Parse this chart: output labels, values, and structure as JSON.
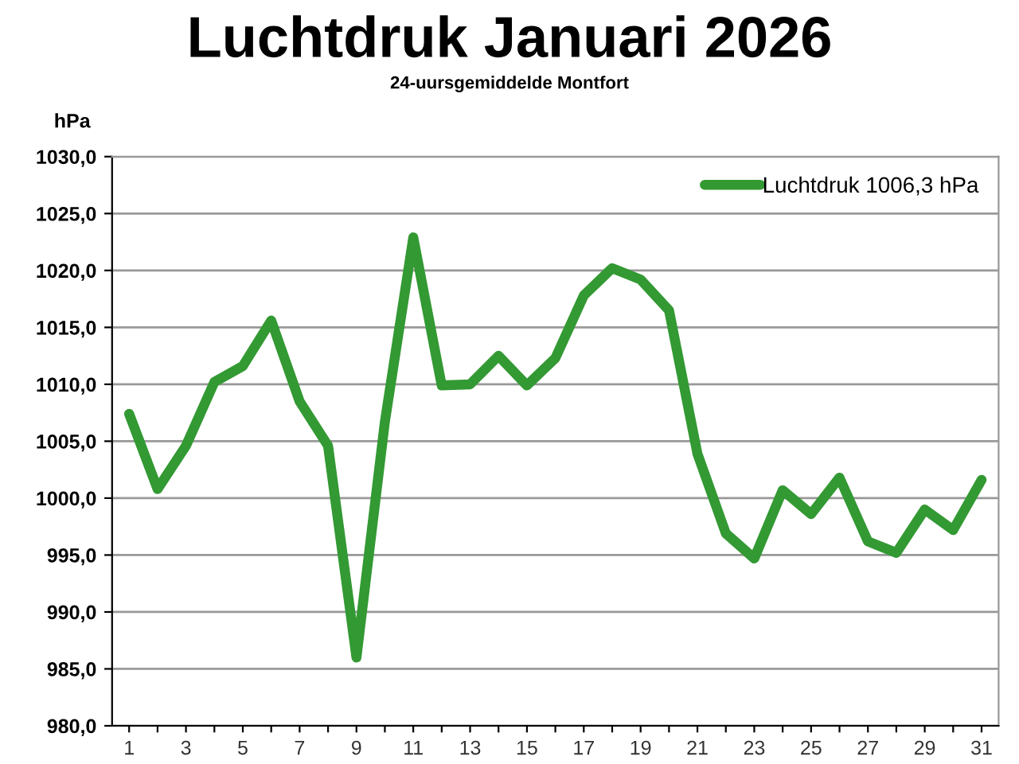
{
  "chart_data": {
    "type": "line",
    "title": "Luchtdruk Januari 2026",
    "subtitle": "24-uursgemiddelde Montfort",
    "ylabel": "hPa",
    "categories": [
      "1",
      null,
      "3",
      null,
      "5",
      null,
      "7",
      null,
      "9",
      null,
      "11",
      null,
      "13",
      null,
      "15",
      null,
      "17",
      null,
      "19",
      null,
      "21",
      null,
      "23",
      null,
      "25",
      null,
      "27",
      null,
      "29",
      null,
      "31"
    ],
    "series": [
      {
        "name": "Luchtdruk 1006,3 hPa",
        "color": "#339933",
        "values": [
          1007.4,
          1000.8,
          1004.6,
          1010.2,
          1011.6,
          1015.6,
          1008.5,
          1004.6,
          986.0,
          1006.7,
          1022.9,
          1009.9,
          1010.0,
          1012.5,
          1009.9,
          1012.3,
          1017.8,
          1020.2,
          1019.2,
          1016.5,
          1003.9,
          996.9,
          994.7,
          1000.7,
          998.6,
          1001.8,
          996.2,
          995.2,
          999.0,
          997.2,
          1001.6
        ]
      }
    ],
    "ylim": [
      980,
      1030
    ],
    "yticks": [
      {
        "value": 980,
        "label": "980,0"
      },
      {
        "value": 985,
        "label": "985,0"
      },
      {
        "value": 990,
        "label": "990,0"
      },
      {
        "value": 995,
        "label": "995,0"
      },
      {
        "value": 1000,
        "label": "1000,0"
      },
      {
        "value": 1005,
        "label": "1005,0"
      },
      {
        "value": 1010,
        "label": "1010,0"
      },
      {
        "value": 1015,
        "label": "1015,0"
      },
      {
        "value": 1020,
        "label": "1020,0"
      },
      {
        "value": 1025,
        "label": "1025,0"
      },
      {
        "value": 1030,
        "label": "1030,0"
      }
    ],
    "grid": "y",
    "legend": "top right",
    "marker": "none",
    "line_style": "solid"
  }
}
